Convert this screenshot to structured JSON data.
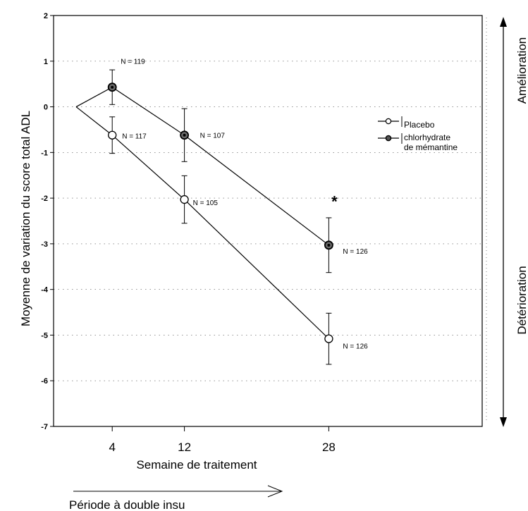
{
  "chart_data": {
    "type": "line",
    "x": [
      0,
      4,
      12,
      28
    ],
    "x_tick_labels": [
      "4",
      "12",
      "28"
    ],
    "x_ticks": [
      4,
      12,
      28
    ],
    "y_ticks": [
      2,
      1,
      0,
      -1,
      -2,
      -3,
      -4,
      -5,
      -6,
      -7
    ],
    "y_tick_labels": [
      "2",
      "1",
      "0",
      "-1",
      "-2",
      "-3",
      "-4",
      "-5",
      "-6",
      "-7"
    ],
    "xlabel": "Semaine de traitement",
    "ylabel": "Moyenne de variation du score total ADL",
    "ylim": [
      -7,
      2
    ],
    "xlim": [
      -2.5,
      45
    ],
    "grid": "dotted horizontal",
    "legend_placement": "right",
    "series": [
      {
        "name": "Placebo",
        "marker": "open-circle",
        "color": "#000000",
        "x": [
          0,
          4,
          12,
          28
        ],
        "y": [
          0,
          -0.62,
          -2.03,
          -5.08
        ],
        "err": [
          null,
          0.4,
          0.52,
          0.56
        ],
        "n_labels": [
          "",
          "N = 117",
          "N = 105",
          "N = 126"
        ]
      },
      {
        "name": "chlorhydrate de mémantine",
        "marker": "filled-circle",
        "color": "#000000",
        "x": [
          0,
          4,
          12,
          28
        ],
        "y": [
          0,
          0.43,
          -0.62,
          -3.03
        ],
        "err": [
          null,
          0.38,
          0.58,
          0.6
        ],
        "n_labels": [
          "",
          "N = 119",
          "N = 107",
          "N = 126"
        ]
      }
    ],
    "annotations": [
      "*"
    ],
    "legend": [
      "Placebo",
      "chlorhydrate de mémantine"
    ]
  },
  "side_labels": {
    "improvement": "Amélioration",
    "deterioration": "Détérioration"
  },
  "period_label": "Période à double insu"
}
